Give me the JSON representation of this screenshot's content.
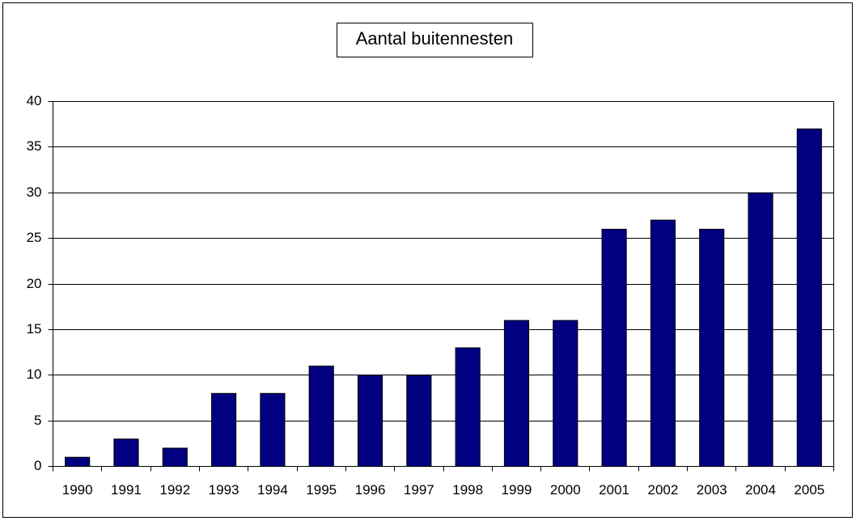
{
  "chart_data": {
    "type": "bar",
    "title": "Aantal buitennesten",
    "categories": [
      "1990",
      "1991",
      "1992",
      "1993",
      "1994",
      "1995",
      "1996",
      "1997",
      "1998",
      "1999",
      "2000",
      "2001",
      "2002",
      "2003",
      "2004",
      "2005"
    ],
    "values": [
      1,
      3,
      2,
      8,
      8,
      11,
      10,
      10,
      13,
      16,
      16,
      26,
      27,
      26,
      30,
      37
    ],
    "color": "#000080",
    "ylim": [
      0,
      40
    ],
    "yticks": [
      0,
      5,
      10,
      15,
      20,
      25,
      30,
      35,
      40
    ],
    "grid": true
  }
}
